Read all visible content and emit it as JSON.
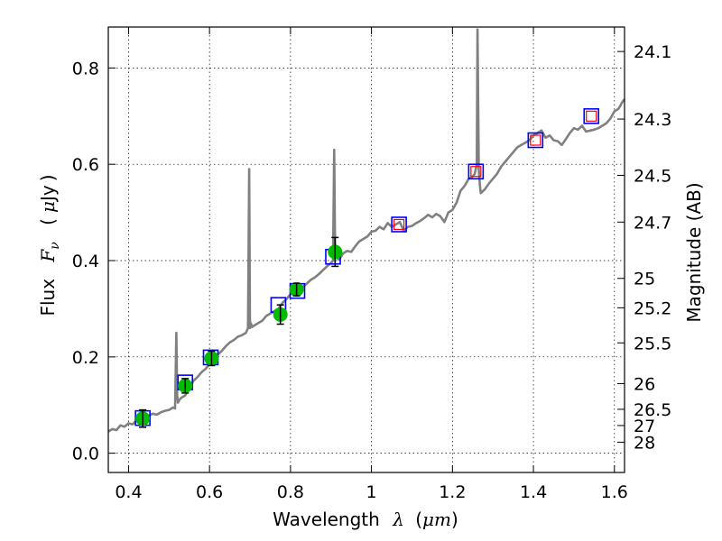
{
  "chart_data": {
    "type": "scatter",
    "title": "",
    "xlabel_text": "Wavelength",
    "xlabel_symbol": "λ",
    "xlabel_unit_open": "(",
    "xlabel_unit": "μm",
    "xlabel_unit_close": ")",
    "ylabel_text": "Flux",
    "ylabel_symbol": "F",
    "ylabel_subscript": "ν",
    "ylabel_unit_open": "(",
    "ylabel_unit_mu": "μ",
    "ylabel_unit": "Jy",
    "ylabel_unit_close": ")",
    "ylabel_right": "Magnitude (AB)",
    "xlim": [
      0.35,
      1.625
    ],
    "ylim": [
      -0.04,
      0.885
    ],
    "grid": true,
    "colors": {
      "spectrum": "#808080",
      "observed": "#00bb00",
      "model_box": "#0000ff",
      "model_inner": "#ff0000",
      "errorbar": "#000000"
    },
    "x_ticks": [
      {
        "value": 0.4,
        "label": "0.4"
      },
      {
        "value": 0.6,
        "label": "0.6"
      },
      {
        "value": 0.8,
        "label": "0.8"
      },
      {
        "value": 1.0,
        "label": "1"
      },
      {
        "value": 1.2,
        "label": "1.2"
      },
      {
        "value": 1.4,
        "label": "1.4"
      },
      {
        "value": 1.6,
        "label": "1.6"
      }
    ],
    "y_ticks": [
      {
        "value": 0.0,
        "label": "0.0"
      },
      {
        "value": 0.2,
        "label": "0.2"
      },
      {
        "value": 0.4,
        "label": "0.4"
      },
      {
        "value": 0.6,
        "label": "0.6"
      },
      {
        "value": 0.8,
        "label": "0.8"
      }
    ],
    "mag_ticks": [
      {
        "flux": 0.8342,
        "label": "24.1"
      },
      {
        "flux": 0.6939,
        "label": "24.3"
      },
      {
        "flux": 0.5771,
        "label": "24.5"
      },
      {
        "flux": 0.48,
        "label": "24.7"
      },
      {
        "flux": 0.3631,
        "label": "25"
      },
      {
        "flux": 0.302,
        "label": "25.2"
      },
      {
        "flux": 0.2291,
        "label": "25.5"
      },
      {
        "flux": 0.1445,
        "label": "26"
      },
      {
        "flux": 0.0912,
        "label": "26.5"
      },
      {
        "flux": 0.0575,
        "label": "27"
      },
      {
        "flux": 0.0229,
        "label": "28"
      }
    ],
    "observed_points": [
      {
        "x": 0.435,
        "y": 0.072,
        "err": 0.018
      },
      {
        "x": 0.54,
        "y": 0.14,
        "err": 0.015
      },
      {
        "x": 0.605,
        "y": 0.197,
        "err": 0.015
      },
      {
        "x": 0.775,
        "y": 0.288,
        "err": 0.02
      },
      {
        "x": 0.815,
        "y": 0.34,
        "err": 0.013
      },
      {
        "x": 0.91,
        "y": 0.418,
        "err": 0.03
      }
    ],
    "model_points": [
      {
        "x": 0.435,
        "y": 0.073,
        "inner": false
      },
      {
        "x": 0.54,
        "y": 0.147,
        "inner": false
      },
      {
        "x": 0.603,
        "y": 0.199,
        "inner": false
      },
      {
        "x": 0.77,
        "y": 0.308,
        "inner": false
      },
      {
        "x": 0.817,
        "y": 0.337,
        "inner": false
      },
      {
        "x": 0.905,
        "y": 0.408,
        "inner": false
      },
      {
        "x": 1.068,
        "y": 0.475,
        "inner": true
      },
      {
        "x": 1.258,
        "y": 0.585,
        "inner": true
      },
      {
        "x": 1.405,
        "y": 0.65,
        "inner": true
      },
      {
        "x": 1.543,
        "y": 0.7,
        "inner": true
      }
    ],
    "spectrum": {
      "x": [
        0.35,
        0.36,
        0.37,
        0.38,
        0.39,
        0.4,
        0.41,
        0.42,
        0.43,
        0.44,
        0.45,
        0.46,
        0.47,
        0.48,
        0.49,
        0.5,
        0.51,
        0.515,
        0.518,
        0.52,
        0.522,
        0.525,
        0.53,
        0.54,
        0.55,
        0.56,
        0.57,
        0.58,
        0.59,
        0.6,
        0.61,
        0.62,
        0.63,
        0.64,
        0.65,
        0.66,
        0.67,
        0.68,
        0.69,
        0.695,
        0.698,
        0.7,
        0.702,
        0.705,
        0.71,
        0.72,
        0.73,
        0.74,
        0.75,
        0.76,
        0.77,
        0.78,
        0.79,
        0.8,
        0.81,
        0.82,
        0.83,
        0.84,
        0.85,
        0.86,
        0.87,
        0.88,
        0.89,
        0.9,
        0.905,
        0.908,
        0.91,
        0.912,
        0.915,
        0.92,
        0.93,
        0.94,
        0.95,
        0.96,
        0.97,
        0.98,
        0.99,
        1.0,
        1.01,
        1.02,
        1.03,
        1.04,
        1.05,
        1.06,
        1.07,
        1.08,
        1.09,
        1.1,
        1.11,
        1.12,
        1.13,
        1.14,
        1.15,
        1.16,
        1.17,
        1.18,
        1.19,
        1.2,
        1.21,
        1.22,
        1.23,
        1.24,
        1.25,
        1.255,
        1.26,
        1.262,
        1.265,
        1.268,
        1.27,
        1.28,
        1.29,
        1.3,
        1.31,
        1.32,
        1.33,
        1.34,
        1.35,
        1.36,
        1.37,
        1.38,
        1.39,
        1.4,
        1.41,
        1.42,
        1.43,
        1.44,
        1.45,
        1.46,
        1.47,
        1.48,
        1.49,
        1.5,
        1.51,
        1.52,
        1.53,
        1.54,
        1.55,
        1.56,
        1.57,
        1.58,
        1.59,
        1.6,
        1.61,
        1.62,
        1.625
      ],
      "y": [
        0.045,
        0.05,
        0.048,
        0.058,
        0.055,
        0.062,
        0.06,
        0.068,
        0.072,
        0.075,
        0.078,
        0.082,
        0.08,
        0.085,
        0.088,
        0.09,
        0.095,
        0.093,
        0.25,
        0.12,
        0.105,
        0.11,
        0.115,
        0.12,
        0.135,
        0.15,
        0.158,
        0.168,
        0.175,
        0.185,
        0.198,
        0.205,
        0.212,
        0.222,
        0.23,
        0.235,
        0.242,
        0.245,
        0.25,
        0.26,
        0.59,
        0.26,
        0.27,
        0.262,
        0.265,
        0.27,
        0.275,
        0.285,
        0.29,
        0.295,
        0.3,
        0.312,
        0.32,
        0.33,
        0.335,
        0.34,
        0.345,
        0.352,
        0.36,
        0.365,
        0.372,
        0.38,
        0.388,
        0.395,
        0.4,
        0.63,
        0.44,
        0.41,
        0.405,
        0.402,
        0.415,
        0.42,
        0.418,
        0.43,
        0.44,
        0.445,
        0.45,
        0.46,
        0.462,
        0.47,
        0.465,
        0.478,
        0.47,
        0.475,
        0.48,
        0.462,
        0.47,
        0.472,
        0.478,
        0.482,
        0.488,
        0.495,
        0.49,
        0.497,
        0.492,
        0.48,
        0.5,
        0.505,
        0.52,
        0.545,
        0.555,
        0.57,
        0.575,
        0.58,
        0.6,
        0.88,
        0.59,
        0.555,
        0.54,
        0.548,
        0.56,
        0.57,
        0.58,
        0.595,
        0.605,
        0.615,
        0.625,
        0.635,
        0.64,
        0.645,
        0.65,
        0.66,
        0.665,
        0.67,
        0.655,
        0.66,
        0.65,
        0.648,
        0.64,
        0.652,
        0.665,
        0.675,
        0.672,
        0.68,
        0.668,
        0.67,
        0.672,
        0.675,
        0.68,
        0.685,
        0.695,
        0.71,
        0.715,
        0.73,
        0.735
      ]
    }
  }
}
